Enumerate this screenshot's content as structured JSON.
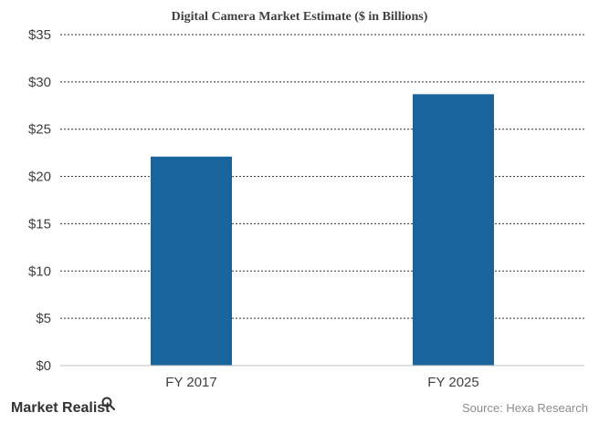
{
  "chart_data": {
    "type": "bar",
    "title": "Digital Camera Market Estimate ($ in Billions)",
    "categories": [
      "FY 2017",
      "FY 2025"
    ],
    "values": [
      22.1,
      28.7
    ],
    "ylim": [
      0,
      35
    ],
    "yticks": [
      0,
      5,
      10,
      15,
      20,
      25,
      30,
      35
    ],
    "ytick_labels": [
      "$0",
      "$5",
      "$10",
      "$15",
      "$20",
      "$25",
      "$30",
      "$35"
    ],
    "xlabel": "",
    "ylabel": "",
    "grid": true,
    "bar_color": "#19649c"
  },
  "footer": {
    "logo_text": "Market Realist",
    "source_text": "Source: Hexa Research"
  }
}
